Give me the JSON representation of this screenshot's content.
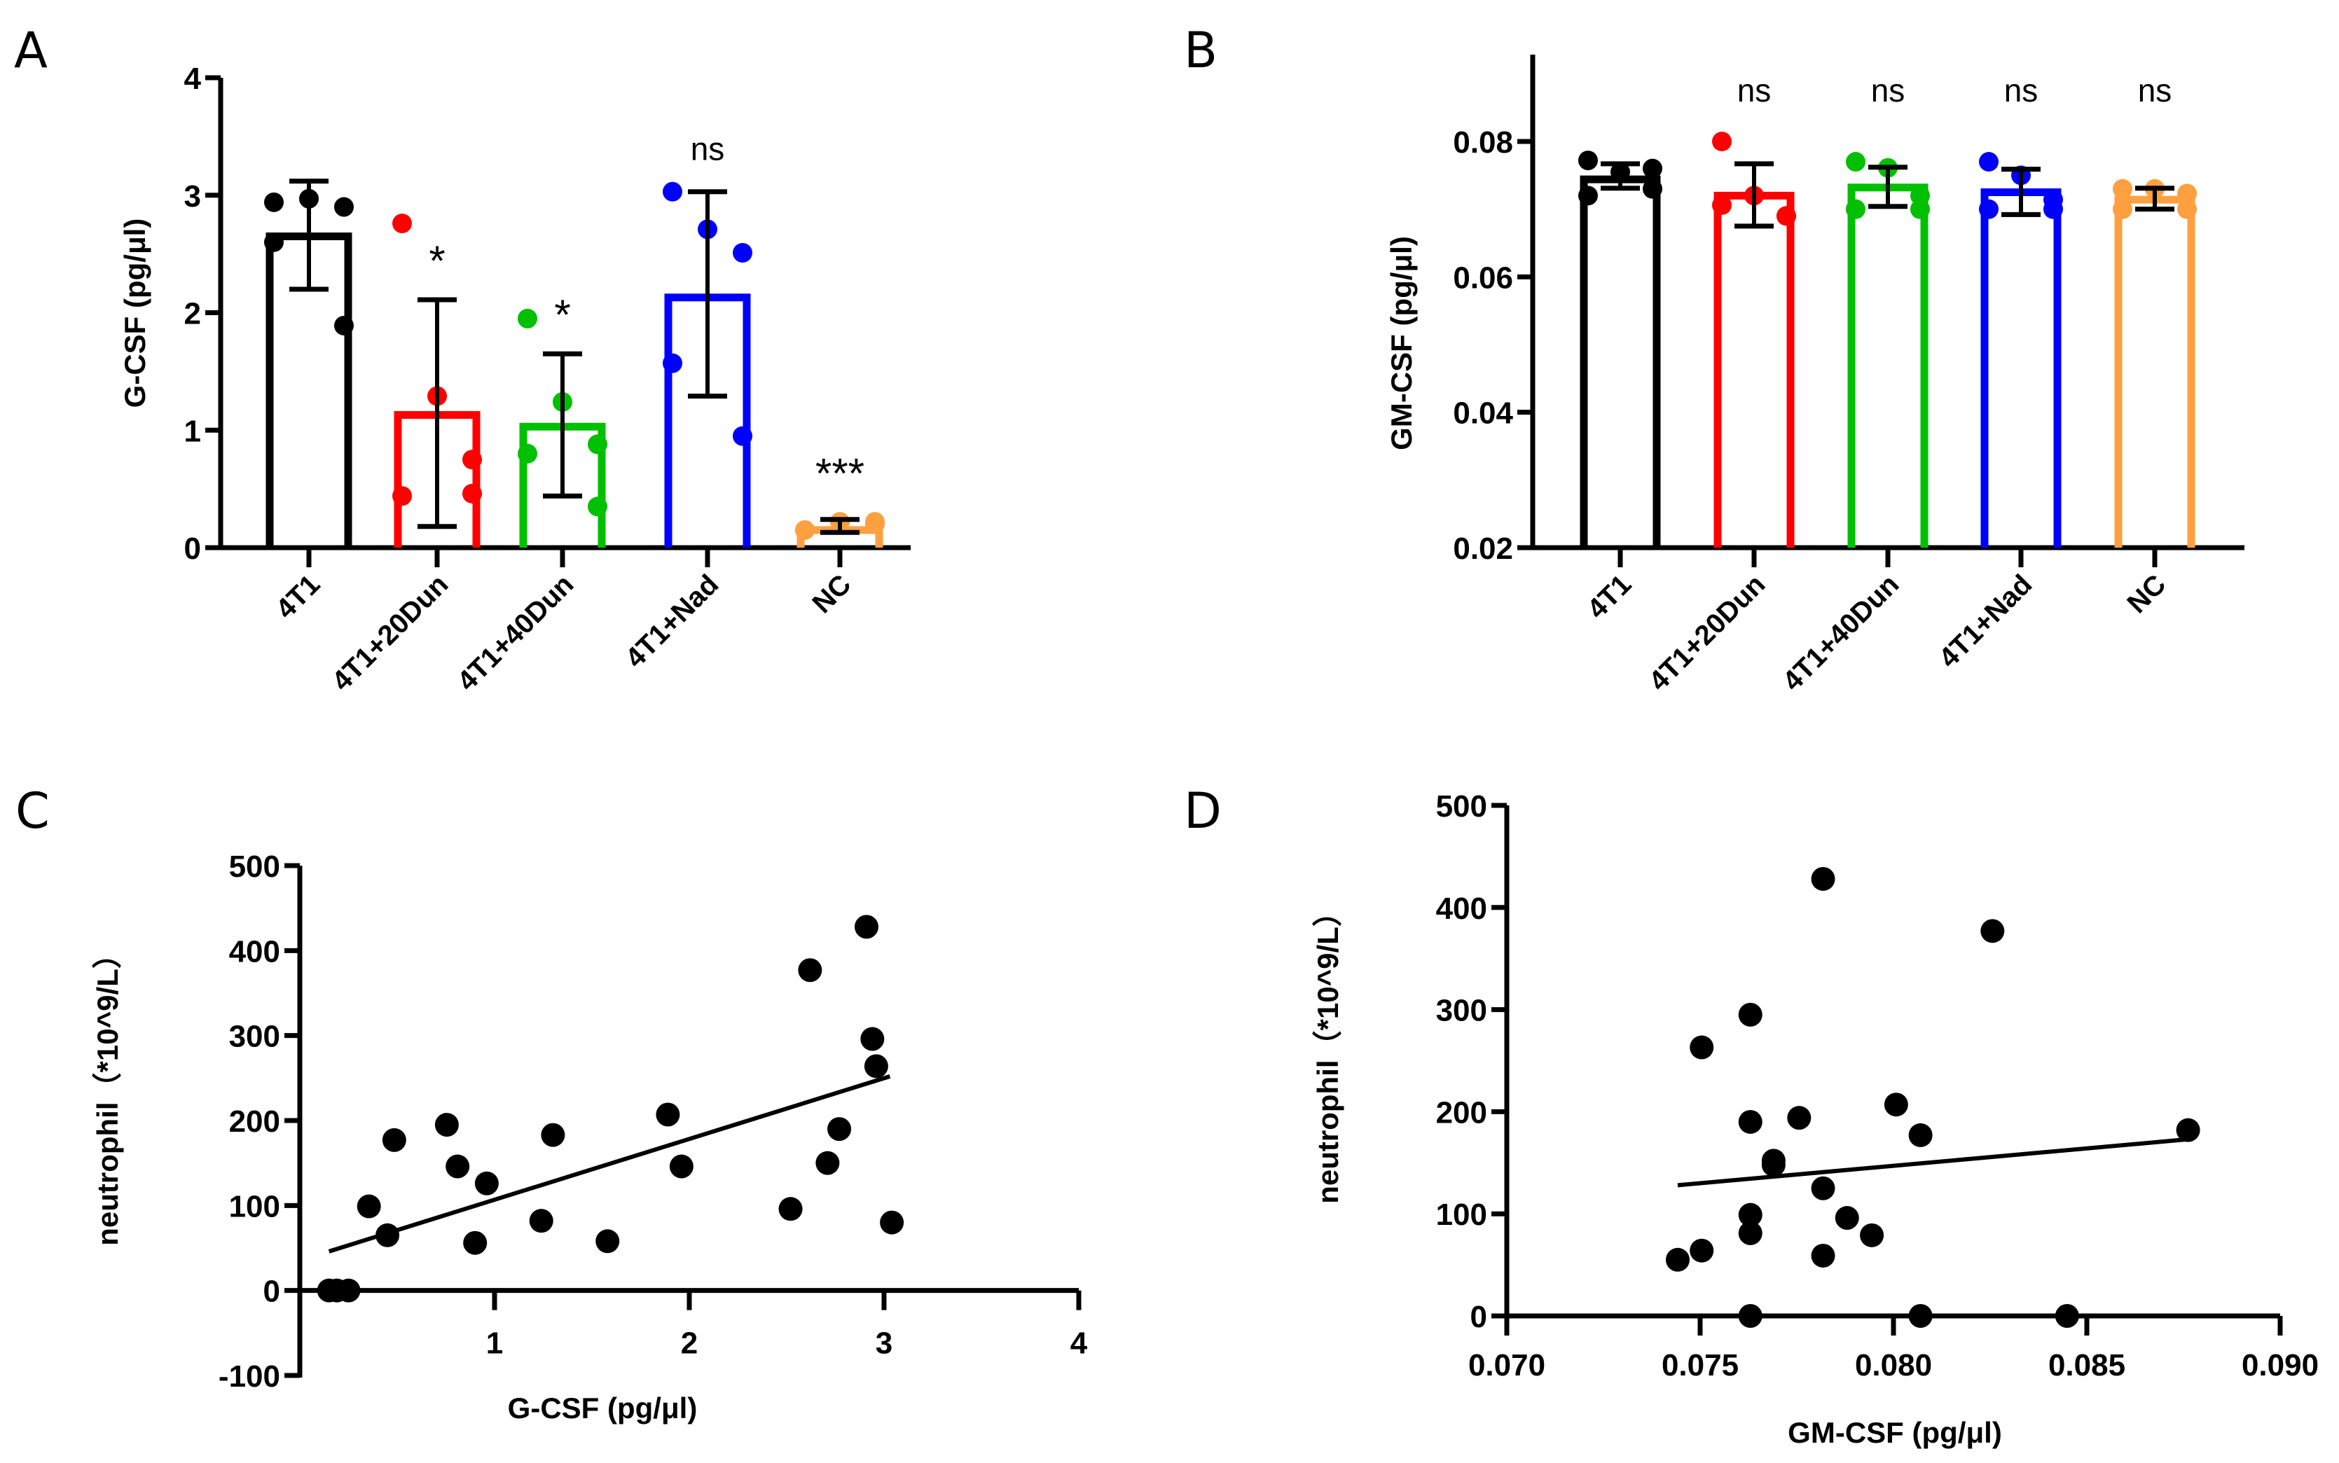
{
  "chart_data": [
    {
      "panel": "A",
      "type": "bar",
      "ylabel": "G-CSF (pg/μl)",
      "xlabel": "",
      "ylim": [
        0,
        4
      ],
      "yticks": [
        "0",
        "1",
        "2",
        "3",
        "4"
      ],
      "ytick_values": [
        0,
        1,
        2,
        3,
        4
      ],
      "categories": [
        "4T1",
        "4T1+20Dun",
        "4T1+40Dun",
        "4T1+Nad",
        "NC"
      ],
      "colors": [
        "#000000",
        "#ff0000",
        "#00c000",
        "#0000ff",
        "#ffa040"
      ],
      "values": [
        2.65,
        1.13,
        1.03,
        2.13,
        0.15
      ],
      "sd_low": [
        2.2,
        0.18,
        0.44,
        1.29,
        0.13
      ],
      "sd_high": [
        3.12,
        2.11,
        1.65,
        3.03,
        0.24
      ],
      "points": [
        [
          2.94,
          2.97,
          2.9,
          2.6,
          1.89
        ],
        [
          2.76,
          1.29,
          0.75,
          0.44,
          0.46
        ],
        [
          1.95,
          1.24,
          0.88,
          0.8,
          0.35
        ],
        [
          3.03,
          2.71,
          2.51,
          1.57,
          0.95
        ],
        [
          0.15,
          0.22,
          0.2,
          0.15,
          0.22
        ]
      ],
      "significance": [
        "",
        "*",
        "*",
        "ns",
        "***"
      ]
    },
    {
      "panel": "B",
      "type": "bar",
      "ylabel": "GM-CSF (pg/μl)",
      "xlabel": "",
      "ylim": [
        0.02,
        0.09
      ],
      "yticks": [
        "0.02",
        "0.04",
        "0.06",
        "0.08"
      ],
      "ytick_values": [
        0.02,
        0.04,
        0.06,
        0.08
      ],
      "categories": [
        "4T1",
        "4T1+20Dun",
        "4T1+40Dun",
        "4T1+Nad",
        "NC"
      ],
      "colors": [
        "#000000",
        "#ff0000",
        "#00c000",
        "#0000ff",
        "#ffa040"
      ],
      "values": [
        0.0744,
        0.072,
        0.0732,
        0.0725,
        0.0714
      ],
      "sd_low": [
        0.0731,
        0.0675,
        0.0704,
        0.0692,
        0.07
      ],
      "sd_high": [
        0.0767,
        0.0767,
        0.0762,
        0.0759,
        0.0731
      ],
      "points": [
        [
          0.0772,
          0.0755,
          0.076,
          0.072,
          0.073
        ],
        [
          0.08,
          0.072,
          0.069,
          0.0706,
          0.069
        ],
        [
          0.077,
          0.0761,
          0.072,
          0.07,
          0.07
        ],
        [
          0.077,
          0.075,
          0.07,
          0.07,
          0.0714
        ],
        [
          0.073,
          0.073,
          0.0723,
          0.07,
          0.07
        ]
      ],
      "significance": [
        "",
        "ns",
        "ns",
        "ns",
        "ns"
      ]
    },
    {
      "panel": "C",
      "type": "scatter",
      "xlabel": "G-CSF (pg/μl)",
      "ylabel": "neutrophil（*10^9/L）",
      "xlim": [
        0,
        4
      ],
      "ylim": [
        -100,
        500
      ],
      "xticks": [
        "1",
        "2",
        "3",
        "4"
      ],
      "xtick_values": [
        1,
        2,
        3,
        4
      ],
      "yticks": [
        "-100",
        "0",
        "100",
        "200",
        "300",
        "400",
        "500"
      ],
      "ytick_values": [
        -100,
        0,
        100,
        200,
        300,
        400,
        500
      ],
      "x": [
        0.15,
        0.19,
        0.25,
        0.355,
        0.45,
        0.485,
        0.755,
        0.81,
        0.9,
        0.96,
        1.24,
        1.3,
        1.58,
        1.89,
        1.96,
        2.52,
        2.62,
        2.71,
        2.77,
        2.91,
        2.94,
        2.96,
        3.04
      ],
      "y": [
        0,
        0,
        0,
        99,
        65,
        177,
        195,
        146,
        56,
        126,
        82,
        183,
        58,
        207,
        146,
        96,
        377,
        150,
        190,
        428,
        296,
        264,
        80
      ],
      "fit_line": {
        "x": [
          0.15,
          3.03
        ],
        "y": [
          46,
          252
        ]
      }
    },
    {
      "panel": "D",
      "type": "scatter",
      "xlabel": "GM-CSF (pg/μl)",
      "ylabel": "neutrophil（*10^9/L）",
      "xlim": [
        0.07,
        0.09
      ],
      "ylim": [
        0,
        500
      ],
      "xticks": [
        "0.070",
        "0.075",
        "0.080",
        "0.085",
        "0.090"
      ],
      "xtick_values": [
        0.07,
        0.075,
        0.08,
        0.085,
        0.09
      ],
      "yticks": [
        "0",
        "100",
        "200",
        "300",
        "400",
        "500"
      ],
      "ytick_values": [
        0,
        100,
        200,
        300,
        400,
        500
      ],
      "x": [
        0.07442,
        0.07504,
        0.07504,
        0.0763,
        0.0763,
        0.0763,
        0.0763,
        0.0763,
        0.0769,
        0.0769,
        0.07756,
        0.07818,
        0.07818,
        0.07818,
        0.0788,
        0.07944,
        0.08007,
        0.0807,
        0.0807,
        0.08256,
        0.08449,
        0.08762
      ],
      "y": [
        55,
        64,
        263,
        0,
        99,
        81,
        190,
        295,
        152,
        148,
        194,
        428,
        125,
        59,
        96,
        79,
        207,
        177,
        0,
        377,
        0,
        182
      ],
      "fit_line": {
        "x": [
          0.07442,
          0.08762
        ],
        "y": [
          128,
          173
        ]
      }
    }
  ]
}
